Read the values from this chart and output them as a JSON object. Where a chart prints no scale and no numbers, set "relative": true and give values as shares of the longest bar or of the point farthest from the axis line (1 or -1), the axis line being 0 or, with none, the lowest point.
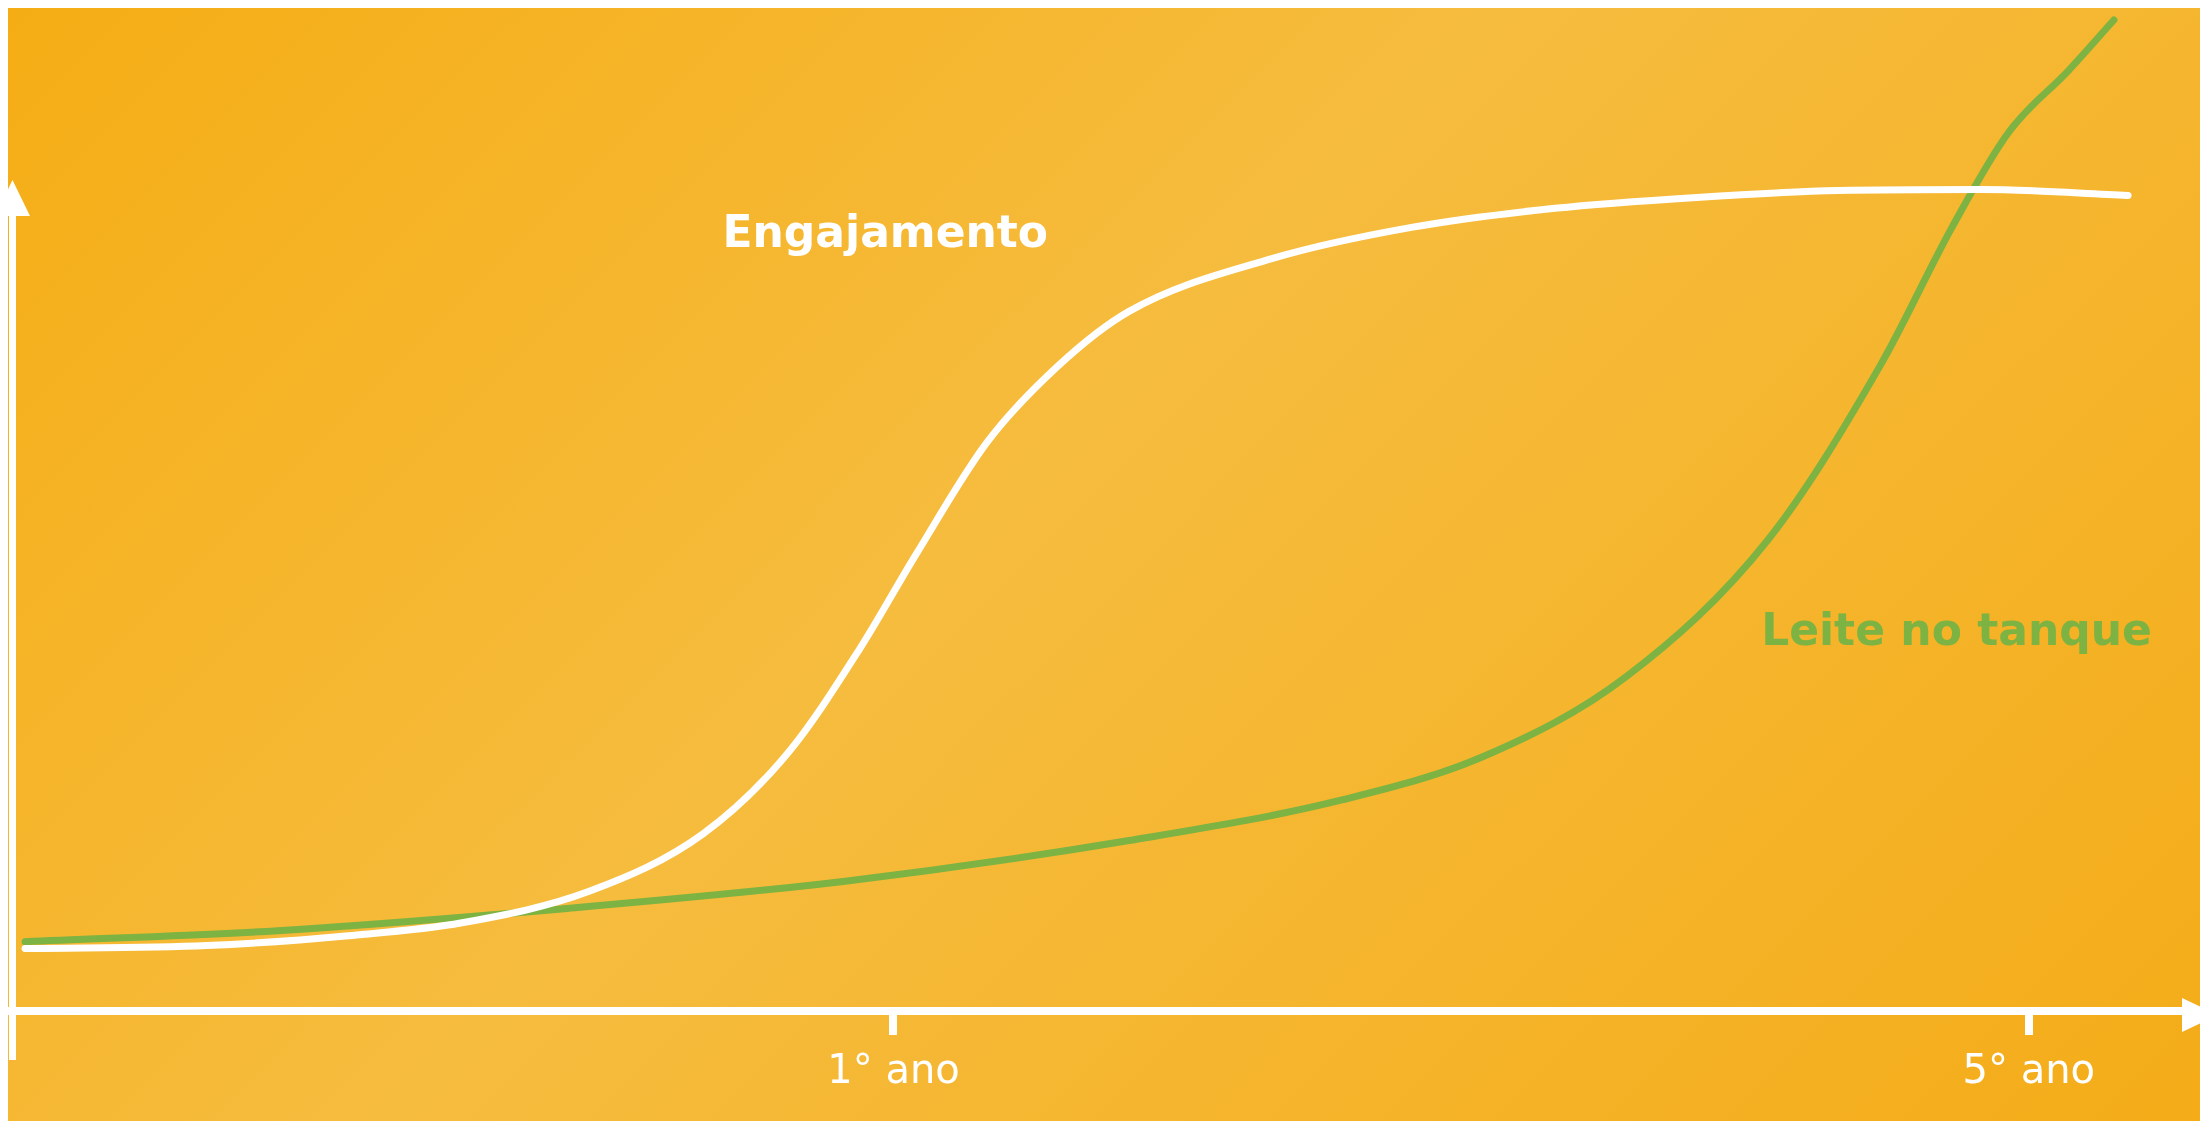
{
  "chart_data": {
    "type": "line",
    "relative": true,
    "xlim": [
      -2.12,
      5.54
    ],
    "xticks": [
      {
        "value": 1,
        "label": "1° ano"
      },
      {
        "value": 5,
        "label": "5° ano"
      }
    ],
    "tick_labels": "x",
    "legend": false,
    "marker": "none",
    "line_style": "solid",
    "series": [
      {
        "name": "Engajamento",
        "color": "#ffffff",
        "x": [
          -2.06,
          -1.42,
          -0.92,
          -0.52,
          -0.07,
          0.33,
          0.63,
          0.88,
          1.08,
          1.33,
          1.58,
          1.83,
          2.33,
          2.83,
          3.33,
          3.83,
          4.33,
          4.83,
          5.35
        ],
        "values": [
          0.063,
          0.066,
          0.076,
          0.089,
          0.121,
          0.179,
          0.261,
          0.365,
          0.461,
          0.574,
          0.651,
          0.706,
          0.759,
          0.791,
          0.81,
          0.821,
          0.828,
          0.829,
          0.823
        ]
      },
      {
        "name": "Leite no tanque",
        "color": "#7cb342",
        "x": [
          -2.06,
          -1.17,
          -0.17,
          0.83,
          1.83,
          2.58,
          3.08,
          3.58,
          4.08,
          4.48,
          4.73,
          4.93,
          5.14,
          5.3
        ],
        "values": [
          0.07,
          0.081,
          0.103,
          0.131,
          0.172,
          0.213,
          0.257,
          0.337,
          0.475,
          0.653,
          0.791,
          0.887,
          0.949,
          1
        ]
      }
    ]
  }
}
